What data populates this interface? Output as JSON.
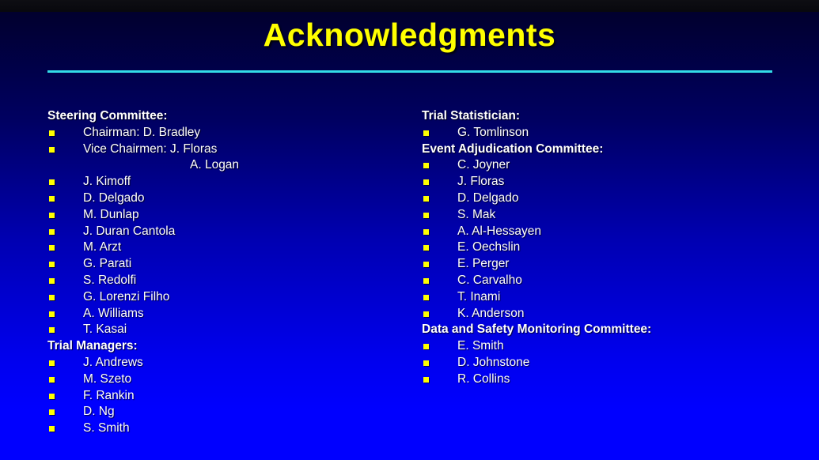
{
  "slide": {
    "title": "Acknowledgments"
  },
  "colors": {
    "background_top_bar": "#0a0a10",
    "background_gradient_start": "#01002e",
    "background_gradient_end": "#0000ff",
    "title_text": "#ffff00",
    "body_text": "#ffffff",
    "bullet": "#ffff00",
    "title_rule": "#33dce8"
  },
  "columns": {
    "left": {
      "sections": [
        {
          "header": "Steering Committee:",
          "items": [
            {
              "text": "Chairman: D. Bradley",
              "continuation": false
            },
            {
              "text": "Vice Chairmen: J. Floras",
              "continuation": false
            },
            {
              "text": "A. Logan",
              "continuation": true
            },
            {
              "text": "J. Kimoff",
              "continuation": false
            },
            {
              "text": "D. Delgado",
              "continuation": false
            },
            {
              "text": "M. Dunlap",
              "continuation": false
            },
            {
              "text": "J. Duran Cantola",
              "continuation": false
            },
            {
              "text": "M. Arzt",
              "continuation": false
            },
            {
              "text": "G. Parati",
              "continuation": false
            },
            {
              "text": "S. Redolfi",
              "continuation": false
            },
            {
              "text": "G. Lorenzi Filho",
              "continuation": false
            },
            {
              "text": "A. Williams",
              "continuation": false
            },
            {
              "text": "T. Kasai",
              "continuation": false
            }
          ]
        },
        {
          "header": "Trial Managers:",
          "items": [
            {
              "text": "J. Andrews",
              "continuation": false
            },
            {
              "text": "M. Szeto",
              "continuation": false
            },
            {
              "text": "F. Rankin",
              "continuation": false
            },
            {
              "text": "D. Ng",
              "continuation": false
            },
            {
              "text": "S. Smith",
              "continuation": false
            }
          ]
        }
      ]
    },
    "right": {
      "sections": [
        {
          "header": "Trial Statistician:",
          "items": [
            {
              "text": "G. Tomlinson",
              "continuation": false
            }
          ]
        },
        {
          "header": "Event Adjudication Committee:",
          "items": [
            {
              "text": "C. Joyner",
              "continuation": false
            },
            {
              "text": "J. Floras",
              "continuation": false
            },
            {
              "text": "D. Delgado",
              "continuation": false
            },
            {
              "text": "S. Mak",
              "continuation": false
            },
            {
              "text": "A. Al-Hessayen",
              "continuation": false
            },
            {
              "text": "E. Oechslin",
              "continuation": false
            },
            {
              "text": "E. Perger",
              "continuation": false
            },
            {
              "text": "C. Carvalho",
              "continuation": false
            },
            {
              "text": "T. Inami",
              "continuation": false
            },
            {
              "text": "K. Anderson",
              "continuation": false
            }
          ]
        },
        {
          "header": "Data and Safety Monitoring Committee:",
          "items": [
            {
              "text": "E. Smith",
              "continuation": false
            },
            {
              "text": "D. Johnstone",
              "continuation": false
            },
            {
              "text": "R. Collins",
              "continuation": false
            }
          ]
        }
      ]
    }
  }
}
